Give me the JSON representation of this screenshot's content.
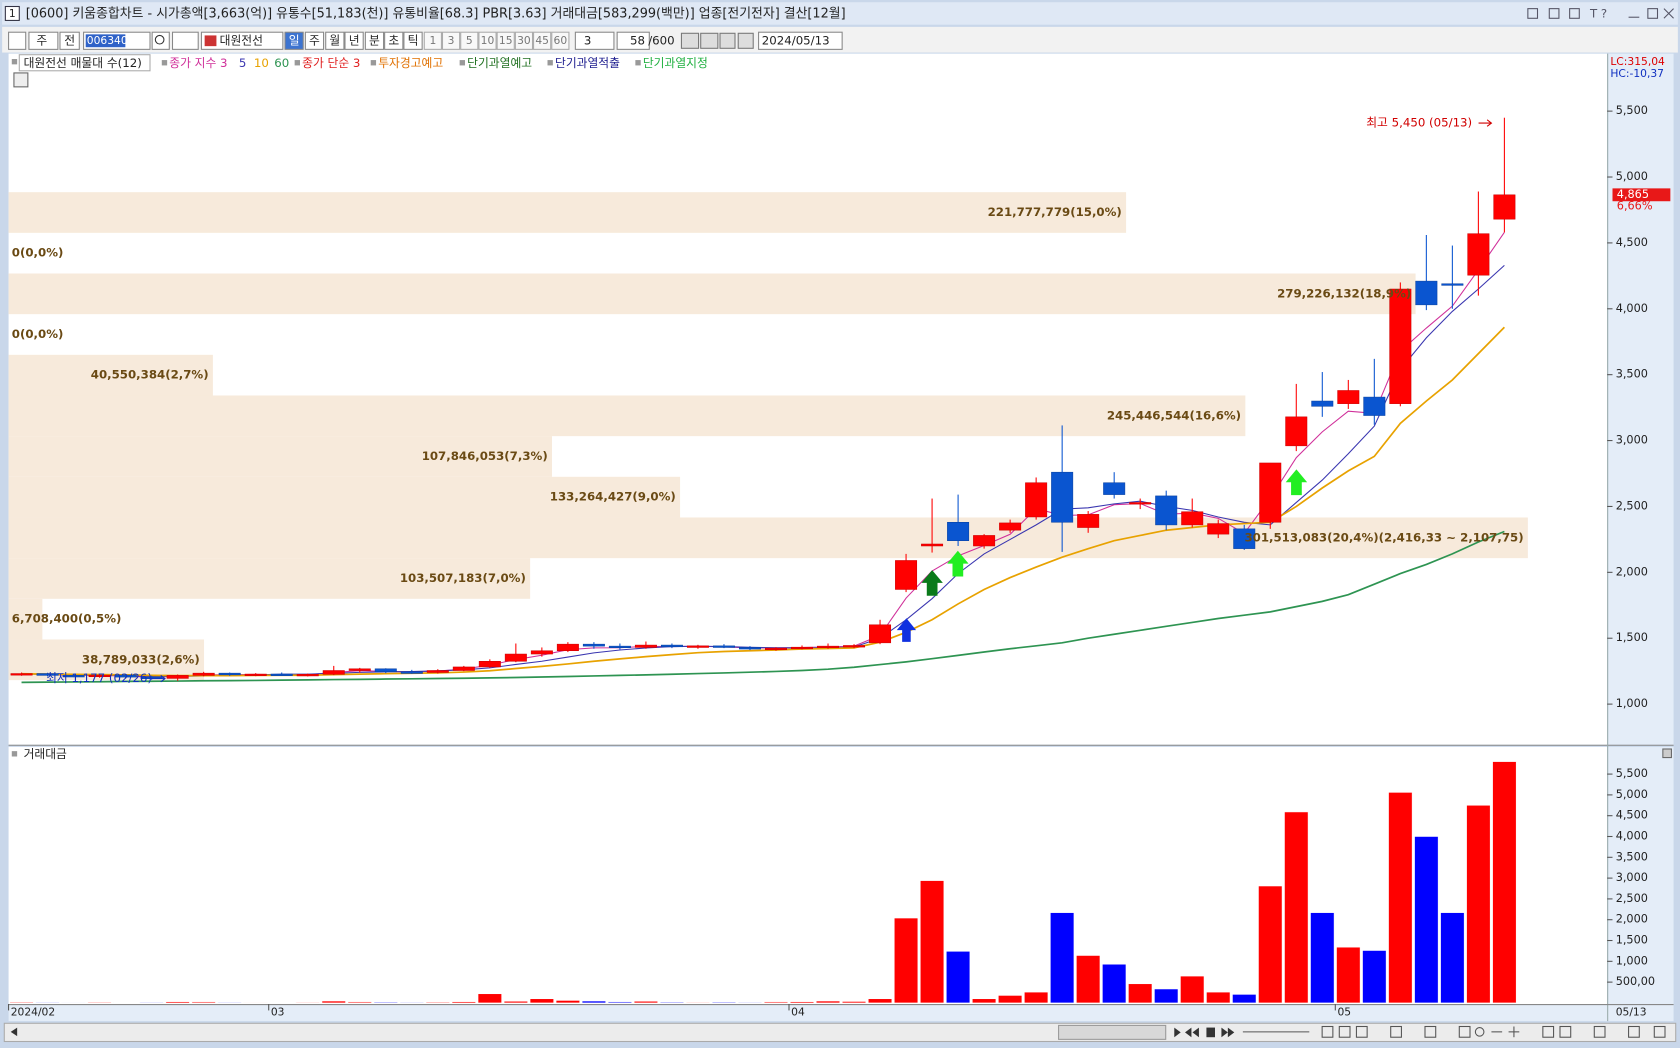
{
  "window": {
    "number": "1",
    "title": "[0600] 키움종합차트 - 시가총액[3,663(억)] 유통수[51,183(천)] 유통비율[68.3] PBR[3.63] 거래대금[583,299(백만)] 업종[전기전자] 결산[12월]"
  },
  "toolbar": {
    "market": "주",
    "mode": "전",
    "code": "006340",
    "name": "대원전선",
    "periods": [
      "일",
      "주",
      "월",
      "년",
      "분",
      "초",
      "틱"
    ],
    "intervals": [
      "1",
      "3",
      "5",
      "10",
      "15",
      "30",
      "45",
      "60"
    ],
    "interval": "3",
    "count": "58",
    "count_max": "/600",
    "date": "2024/05/13"
  },
  "legend_extra": [
    {
      "text": "종가 단순 3",
      "color": "#e02020"
    },
    {
      "text": "투자경고예고",
      "color": "#e07000"
    },
    {
      "text": "단기과열예고",
      "color": "#207020"
    },
    {
      "text": "단기과열적출",
      "color": "#202090"
    },
    {
      "text": "단기과열지정",
      "color": "#20b040"
    }
  ],
  "indicators": {
    "lc": "LC:315,04",
    "hc": "HC:-10,37"
  },
  "axis_footer": {
    "date": "05/13"
  },
  "chart_data": [
    {
      "type": "candlestick",
      "up_color": "#ff0000",
      "down_color": "#0a55d0",
      "categories": [
        "2024/02",
        null,
        null,
        null,
        null,
        null,
        null,
        null,
        null,
        null,
        "03",
        null,
        null,
        null,
        null,
        null,
        null,
        null,
        null,
        null,
        null,
        null,
        null,
        null,
        null,
        null,
        null,
        null,
        null,
        null,
        "04",
        null,
        null,
        null,
        null,
        null,
        null,
        null,
        null,
        null,
        null,
        null,
        null,
        null,
        null,
        null,
        null,
        null,
        null,
        null,
        null,
        "05",
        null,
        null,
        null,
        null,
        null,
        null
      ],
      "open": [
        1225,
        1232,
        1218,
        1212,
        1220,
        1205,
        1195,
        1218,
        1235,
        1222,
        1228,
        1220,
        1226,
        1255,
        1268,
        1245,
        1240,
        1255,
        1282,
        1325,
        1380,
        1405,
        1455,
        1440,
        1430,
        1448,
        1435,
        1442,
        1430,
        1418,
        1425,
        1432,
        1440,
        1465,
        1870,
        2200,
        2380,
        2200,
        2320,
        2420,
        2760,
        2340,
        2680,
        2520,
        2580,
        2360,
        2290,
        2330,
        2380,
        2960,
        3300,
        3280,
        3330,
        3280,
        4210,
        4190,
        4255,
        4680
      ],
      "high": [
        1240,
        1238,
        1230,
        1225,
        1228,
        1215,
        1225,
        1245,
        1240,
        1235,
        1240,
        1232,
        1290,
        1275,
        1272,
        1260,
        1265,
        1290,
        1340,
        1460,
        1430,
        1470,
        1470,
        1460,
        1475,
        1460,
        1450,
        1455,
        1440,
        1432,
        1445,
        1460,
        1455,
        1640,
        2140,
        2560,
        2590,
        2290,
        2400,
        2720,
        3115,
        2465,
        2760,
        2560,
        2620,
        2560,
        2400,
        2360,
        2830,
        3430,
        3520,
        3460,
        3620,
        4200,
        4560,
        4480,
        4890,
        5450
      ],
      "low": [
        1215,
        1210,
        1205,
        1200,
        1195,
        1185,
        1177,
        1210,
        1215,
        1212,
        1215,
        1210,
        1220,
        1240,
        1235,
        1230,
        1232,
        1250,
        1275,
        1318,
        1360,
        1395,
        1420,
        1415,
        1420,
        1425,
        1420,
        1425,
        1410,
        1405,
        1415,
        1420,
        1425,
        1455,
        1850,
        2150,
        2200,
        2180,
        2300,
        2400,
        2155,
        2300,
        2560,
        2480,
        2320,
        2340,
        2260,
        2170,
        2330,
        2920,
        3180,
        3240,
        3120,
        3260,
        3990,
        4000,
        4100,
        4580
      ],
      "close": [
        1232,
        1218,
        1212,
        1220,
        1205,
        1195,
        1218,
        1235,
        1222,
        1228,
        1220,
        1226,
        1255,
        1268,
        1245,
        1240,
        1255,
        1282,
        1325,
        1380,
        1405,
        1455,
        1440,
        1430,
        1448,
        1435,
        1442,
        1430,
        1418,
        1425,
        1432,
        1440,
        1445,
        1602,
        2090,
        2215,
        2240,
        2280,
        2375,
        2680,
        2380,
        2440,
        2590,
        2530,
        2360,
        2460,
        2370,
        2180,
        2830,
        3180,
        3260,
        3380,
        3190,
        4150,
        4030,
        4185,
        4570,
        4865
      ],
      "lines": [
        {
          "name": "종가 지수 3",
          "color": "#d0309a",
          "values": [
            1232,
            1225,
            1218,
            1219,
            1212,
            1204,
            1211,
            1223,
            1223,
            1225,
            1223,
            1224,
            1240,
            1254,
            1249,
            1245,
            1250,
            1266,
            1296,
            1338,
            1371,
            1413,
            1427,
            1428,
            1438,
            1437,
            1439,
            1435,
            1426,
            1426,
            1429,
            1434,
            1440,
            1521,
            1805,
            2010,
            2125,
            2203,
            2289,
            2484,
            2432,
            2436,
            2513,
            2522,
            2441,
            2450,
            2410,
            2295,
            2563,
            2871,
            3066,
            3223,
            3207,
            3678,
            3854,
            4020,
            4295,
            4580
          ]
        },
        {
          "name": "5",
          "color": "#3a36b0",
          "values": [
            1228,
            1226,
            1222,
            1220,
            1217,
            1210,
            1210,
            1214,
            1218,
            1222,
            1227,
            1228,
            1234,
            1241,
            1245,
            1247,
            1253,
            1260,
            1275,
            1301,
            1325,
            1357,
            1389,
            1411,
            1426,
            1437,
            1439,
            1437,
            1431,
            1428,
            1426,
            1428,
            1433,
            1500,
            1640,
            1800,
            1990,
            2140,
            2250,
            2360,
            2480,
            2490,
            2520,
            2540,
            2500,
            2470,
            2420,
            2380,
            2360,
            2530,
            2700,
            2900,
            3110,
            3540,
            3780,
            3980,
            4150,
            4330
          ]
        },
        {
          "name": "10",
          "color": "#e8a200",
          "values": [
            1230,
            1228,
            1226,
            1224,
            1222,
            1218,
            1216,
            1216,
            1216,
            1218,
            1219,
            1219,
            1224,
            1228,
            1231,
            1234,
            1237,
            1243,
            1253,
            1270,
            1286,
            1305,
            1325,
            1343,
            1360,
            1376,
            1390,
            1399,
            1405,
            1411,
            1418,
            1422,
            1427,
            1470,
            1545,
            1640,
            1760,
            1870,
            1960,
            2040,
            2115,
            2180,
            2240,
            2280,
            2320,
            2340,
            2360,
            2370,
            2380,
            2500,
            2640,
            2770,
            2880,
            3130,
            3300,
            3460,
            3660,
            3860
          ]
        },
        {
          "name": "60",
          "color": "#2e9452",
          "values": [
            1165,
            1167,
            1168,
            1170,
            1172,
            1173,
            1175,
            1177,
            1178,
            1180,
            1182,
            1184,
            1186,
            1188,
            1190,
            1192,
            1194,
            1196,
            1199,
            1202,
            1206,
            1210,
            1214,
            1218,
            1222,
            1227,
            1232,
            1237,
            1242,
            1248,
            1255,
            1265,
            1280,
            1300,
            1320,
            1345,
            1370,
            1395,
            1420,
            1442,
            1465,
            1500,
            1530,
            1560,
            1590,
            1620,
            1650,
            1675,
            1700,
            1740,
            1780,
            1830,
            1910,
            1990,
            2060,
            2140,
            2230,
            2310
          ]
        }
      ],
      "ylim": [
        700,
        5920
      ],
      "yticks": [
        {
          "value": 1000,
          "label": "1,000"
        },
        {
          "value": 1500,
          "label": "1,500"
        },
        {
          "value": 2000,
          "label": "2,000"
        },
        {
          "value": 2500,
          "label": "2,500"
        },
        {
          "value": 3000,
          "label": "3,000"
        },
        {
          "value": 3500,
          "label": "3,500"
        },
        {
          "value": 4000,
          "label": "4,000"
        },
        {
          "value": 4500,
          "label": "4,500"
        },
        {
          "value": 5000,
          "label": "5,000"
        },
        {
          "value": 5500,
          "label": "5,500"
        }
      ],
      "grid": false,
      "current": {
        "value": 4865,
        "label": "4,865",
        "change": "6,66%"
      },
      "annotations": [
        {
          "text": "최고 5,450 (05/13)",
          "value": 5450,
          "color": "#d00000"
        },
        {
          "text": "최저 1,177 (02/26)",
          "value": 1177,
          "color": "#1030c0"
        }
      ],
      "volume_profile": {
        "title": "대원전선 매물대 수(12)",
        "color": "#f7eadb",
        "label_color": "#6a4a14",
        "bands": [
          {
            "low": 4576.39,
            "high": 4884.97,
            "volume": 221777779,
            "label": "221,777,779(15,0%)"
          },
          {
            "low": 4267.81,
            "high": 4576.39,
            "volume": 0,
            "label": "0(0,0%)"
          },
          {
            "low": 3959.23,
            "high": 4267.81,
            "volume": 279226132,
            "label": "279,226,132(18,9%)"
          },
          {
            "low": 3650.65,
            "high": 3959.23,
            "volume": 0,
            "label": "0(0,0%)"
          },
          {
            "low": 3342.07,
            "high": 3650.65,
            "volume": 40550384,
            "label": "40,550,384(2,7%)"
          },
          {
            "low": 3033.49,
            "high": 3342.07,
            "volume": 245446544,
            "label": "245,446,544(16,6%)"
          },
          {
            "low": 2724.91,
            "high": 3033.49,
            "volume": 107846053,
            "label": "107,846,053(7,3%)"
          },
          {
            "low": 2416.33,
            "high": 2724.91,
            "volume": 133264427,
            "label": "133,264,427(9,0%)"
          },
          {
            "low": 2107.75,
            "high": 2416.33,
            "volume": 301513083,
            "label": "301,513,083(20,4%)(2,416,33 ~ 2,107,75)"
          },
          {
            "low": 1799.17,
            "high": 2107.75,
            "volume": 103507183,
            "label": "103,507,183(7,0%)"
          },
          {
            "low": 1490.59,
            "high": 1799.17,
            "volume": 6708400,
            "label": "6,708,400(0,5%)"
          },
          {
            "low": 1182.01,
            "high": 1490.59,
            "volume": 38789033,
            "label": "38,789,033(2,6%)"
          }
        ]
      }
    },
    {
      "type": "bar",
      "title": "거래대금",
      "up_color": "#ff0000",
      "down_color": "#0000ff",
      "values": [
        20,
        15,
        12,
        18,
        10,
        15,
        30,
        25,
        15,
        12,
        10,
        15,
        45,
        25,
        20,
        15,
        20,
        30,
        220,
        40,
        100,
        60,
        45,
        25,
        40,
        20,
        15,
        20,
        15,
        25,
        30,
        45,
        35,
        100,
        2040,
        2940,
        1240,
        100,
        180,
        260,
        2170,
        1140,
        930,
        460,
        335,
        645,
        260,
        205,
        2810,
        4590,
        2170,
        1340,
        1260,
        5060,
        4000,
        2170,
        4750,
        5800
      ],
      "ylim": [
        0,
        6000
      ],
      "yticks": [
        {
          "value": 500,
          "label": "500,00"
        },
        {
          "value": 1000,
          "label": "1,000"
        },
        {
          "value": 1500,
          "label": "1,500"
        },
        {
          "value": 2000,
          "label": "2,000"
        },
        {
          "value": 2500,
          "label": "2,500"
        },
        {
          "value": 3000,
          "label": "3,000"
        },
        {
          "value": 3500,
          "label": "3,500"
        },
        {
          "value": 4000,
          "label": "4,000"
        },
        {
          "value": 4500,
          "label": "4,500"
        },
        {
          "value": 5000,
          "label": "5,000"
        },
        {
          "value": 5500,
          "label": "5,500"
        }
      ]
    }
  ]
}
